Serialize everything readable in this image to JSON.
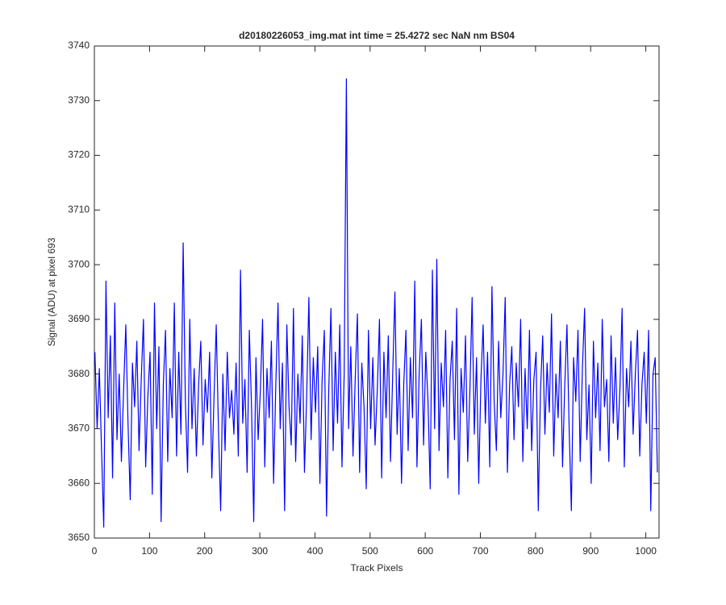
{
  "chart_data": {
    "type": "line",
    "title": "d20180226053_img.mat int time = 25.4272 sec  NaN nm BS04",
    "x_label": "Track Pixels",
    "y_label": "Signal (ADU) at pixel 693",
    "xlim": [
      0,
      1024
    ],
    "xticks": [
      0,
      100,
      200,
      300,
      400,
      500,
      600,
      700,
      800,
      900,
      1000
    ],
    "ylim": [
      3650,
      3740
    ],
    "yticks": [
      3650,
      3660,
      3670,
      3680,
      3690,
      3700,
      3710,
      3720,
      3730,
      3740
    ],
    "grid": false,
    "x": [
      1,
      5,
      9,
      13,
      17,
      21,
      25,
      29,
      33,
      37,
      41,
      45,
      49,
      53,
      57,
      61,
      65,
      69,
      73,
      77,
      81,
      85,
      89,
      93,
      97,
      101,
      105,
      109,
      113,
      117,
      121,
      125,
      129,
      133,
      137,
      141,
      145,
      149,
      153,
      157,
      161,
      165,
      169,
      173,
      177,
      181,
      185,
      189,
      193,
      197,
      201,
      205,
      209,
      213,
      217,
      221,
      225,
      229,
      233,
      237,
      241,
      245,
      249,
      253,
      257,
      261,
      265,
      269,
      273,
      277,
      281,
      285,
      289,
      293,
      297,
      301,
      305,
      309,
      313,
      317,
      321,
      325,
      329,
      333,
      337,
      341,
      345,
      349,
      353,
      357,
      361,
      365,
      369,
      373,
      377,
      381,
      385,
      389,
      393,
      397,
      401,
      405,
      409,
      413,
      417,
      421,
      425,
      429,
      433,
      437,
      441,
      445,
      449,
      453,
      457,
      461,
      465,
      469,
      473,
      477,
      481,
      485,
      489,
      493,
      497,
      501,
      505,
      509,
      513,
      517,
      521,
      525,
      529,
      533,
      537,
      541,
      545,
      549,
      553,
      557,
      561,
      565,
      569,
      573,
      577,
      581,
      585,
      589,
      593,
      597,
      601,
      605,
      609,
      613,
      617,
      621,
      625,
      629,
      633,
      637,
      641,
      645,
      649,
      653,
      657,
      661,
      665,
      669,
      673,
      677,
      681,
      685,
      689,
      693,
      697,
      701,
      705,
      709,
      713,
      717,
      721,
      725,
      729,
      733,
      737,
      741,
      745,
      749,
      753,
      757,
      761,
      765,
      769,
      773,
      777,
      781,
      785,
      789,
      793,
      797,
      801,
      805,
      809,
      813,
      817,
      821,
      825,
      829,
      833,
      837,
      841,
      845,
      849,
      853,
      857,
      861,
      865,
      869,
      873,
      877,
      881,
      885,
      889,
      893,
      897,
      901,
      905,
      909,
      913,
      917,
      921,
      925,
      929,
      933,
      937,
      941,
      945,
      949,
      953,
      957,
      961,
      965,
      969,
      973,
      977,
      981,
      985,
      989,
      993,
      997,
      1001,
      1005,
      1009,
      1013,
      1017,
      1021
    ],
    "series": [
      {
        "color": "#0000ff",
        "values": [
          3684,
          3670,
          3681,
          3666,
          3652,
          3697,
          3672,
          3687,
          3661,
          3693,
          3668,
          3680,
          3664,
          3677,
          3689,
          3671,
          3657,
          3682,
          3674,
          3686,
          3666,
          3679,
          3690,
          3663,
          3676,
          3684,
          3658,
          3693,
          3670,
          3685,
          3653,
          3678,
          3688,
          3664,
          3681,
          3672,
          3693,
          3665,
          3684,
          3669,
          3704,
          3675,
          3662,
          3690,
          3670,
          3681,
          3665,
          3678,
          3686,
          3667,
          3679,
          3673,
          3684,
          3661,
          3676,
          3689,
          3670,
          3655,
          3680,
          3666,
          3684,
          3672,
          3677,
          3669,
          3682,
          3665,
          3699,
          3671,
          3679,
          3662,
          3688,
          3674,
          3653,
          3683,
          3668,
          3677,
          3690,
          3663,
          3681,
          3672,
          3686,
          3660,
          3678,
          3693,
          3670,
          3682,
          3655,
          3689,
          3674,
          3667,
          3692,
          3664,
          3680,
          3671,
          3687,
          3662,
          3676,
          3694,
          3668,
          3683,
          3673,
          3685,
          3660,
          3679,
          3688,
          3654,
          3677,
          3692,
          3666,
          3684,
          3671,
          3689,
          3663,
          3680,
          3734,
          3670,
          3685,
          3665,
          3679,
          3691,
          3662,
          3682,
          3674,
          3659,
          3688,
          3670,
          3683,
          3667,
          3677,
          3690,
          3661,
          3684,
          3672,
          3687,
          3664,
          3680,
          3695,
          3669,
          3681,
          3660,
          3678,
          3688,
          3666,
          3683,
          3672,
          3697,
          3663,
          3680,
          3690,
          3667,
          3684,
          3675,
          3659,
          3699,
          3670,
          3701,
          3666,
          3682,
          3674,
          3688,
          3661,
          3679,
          3686,
          3668,
          3692,
          3658,
          3681,
          3673,
          3687,
          3664,
          3677,
          3694,
          3669,
          3683,
          3660,
          3679,
          3689,
          3671,
          3684,
          3663,
          3696,
          3675,
          3666,
          3686,
          3672,
          3680,
          3694,
          3662,
          3678,
          3685,
          3668,
          3682,
          3674,
          3690,
          3664,
          3681,
          3670,
          3688,
          3666,
          3679,
          3684,
          3655,
          3677,
          3687,
          3669,
          3682,
          3673,
          3691,
          3665,
          3680,
          3672,
          3686,
          3663,
          3678,
          3689,
          3670,
          3655,
          3683,
          3675,
          3688,
          3664,
          3681,
          3692,
          3668,
          3678,
          3660,
          3686,
          3672,
          3682,
          3666,
          3690,
          3674,
          3679,
          3664,
          3687,
          3671,
          3683,
          3668,
          3677,
          3692,
          3663,
          3681,
          3674,
          3686,
          3669,
          3680,
          3688,
          3665,
          3678,
          3684,
          3671,
          3688,
          3655,
          3680,
          3683,
          3662
        ]
      }
    ]
  }
}
